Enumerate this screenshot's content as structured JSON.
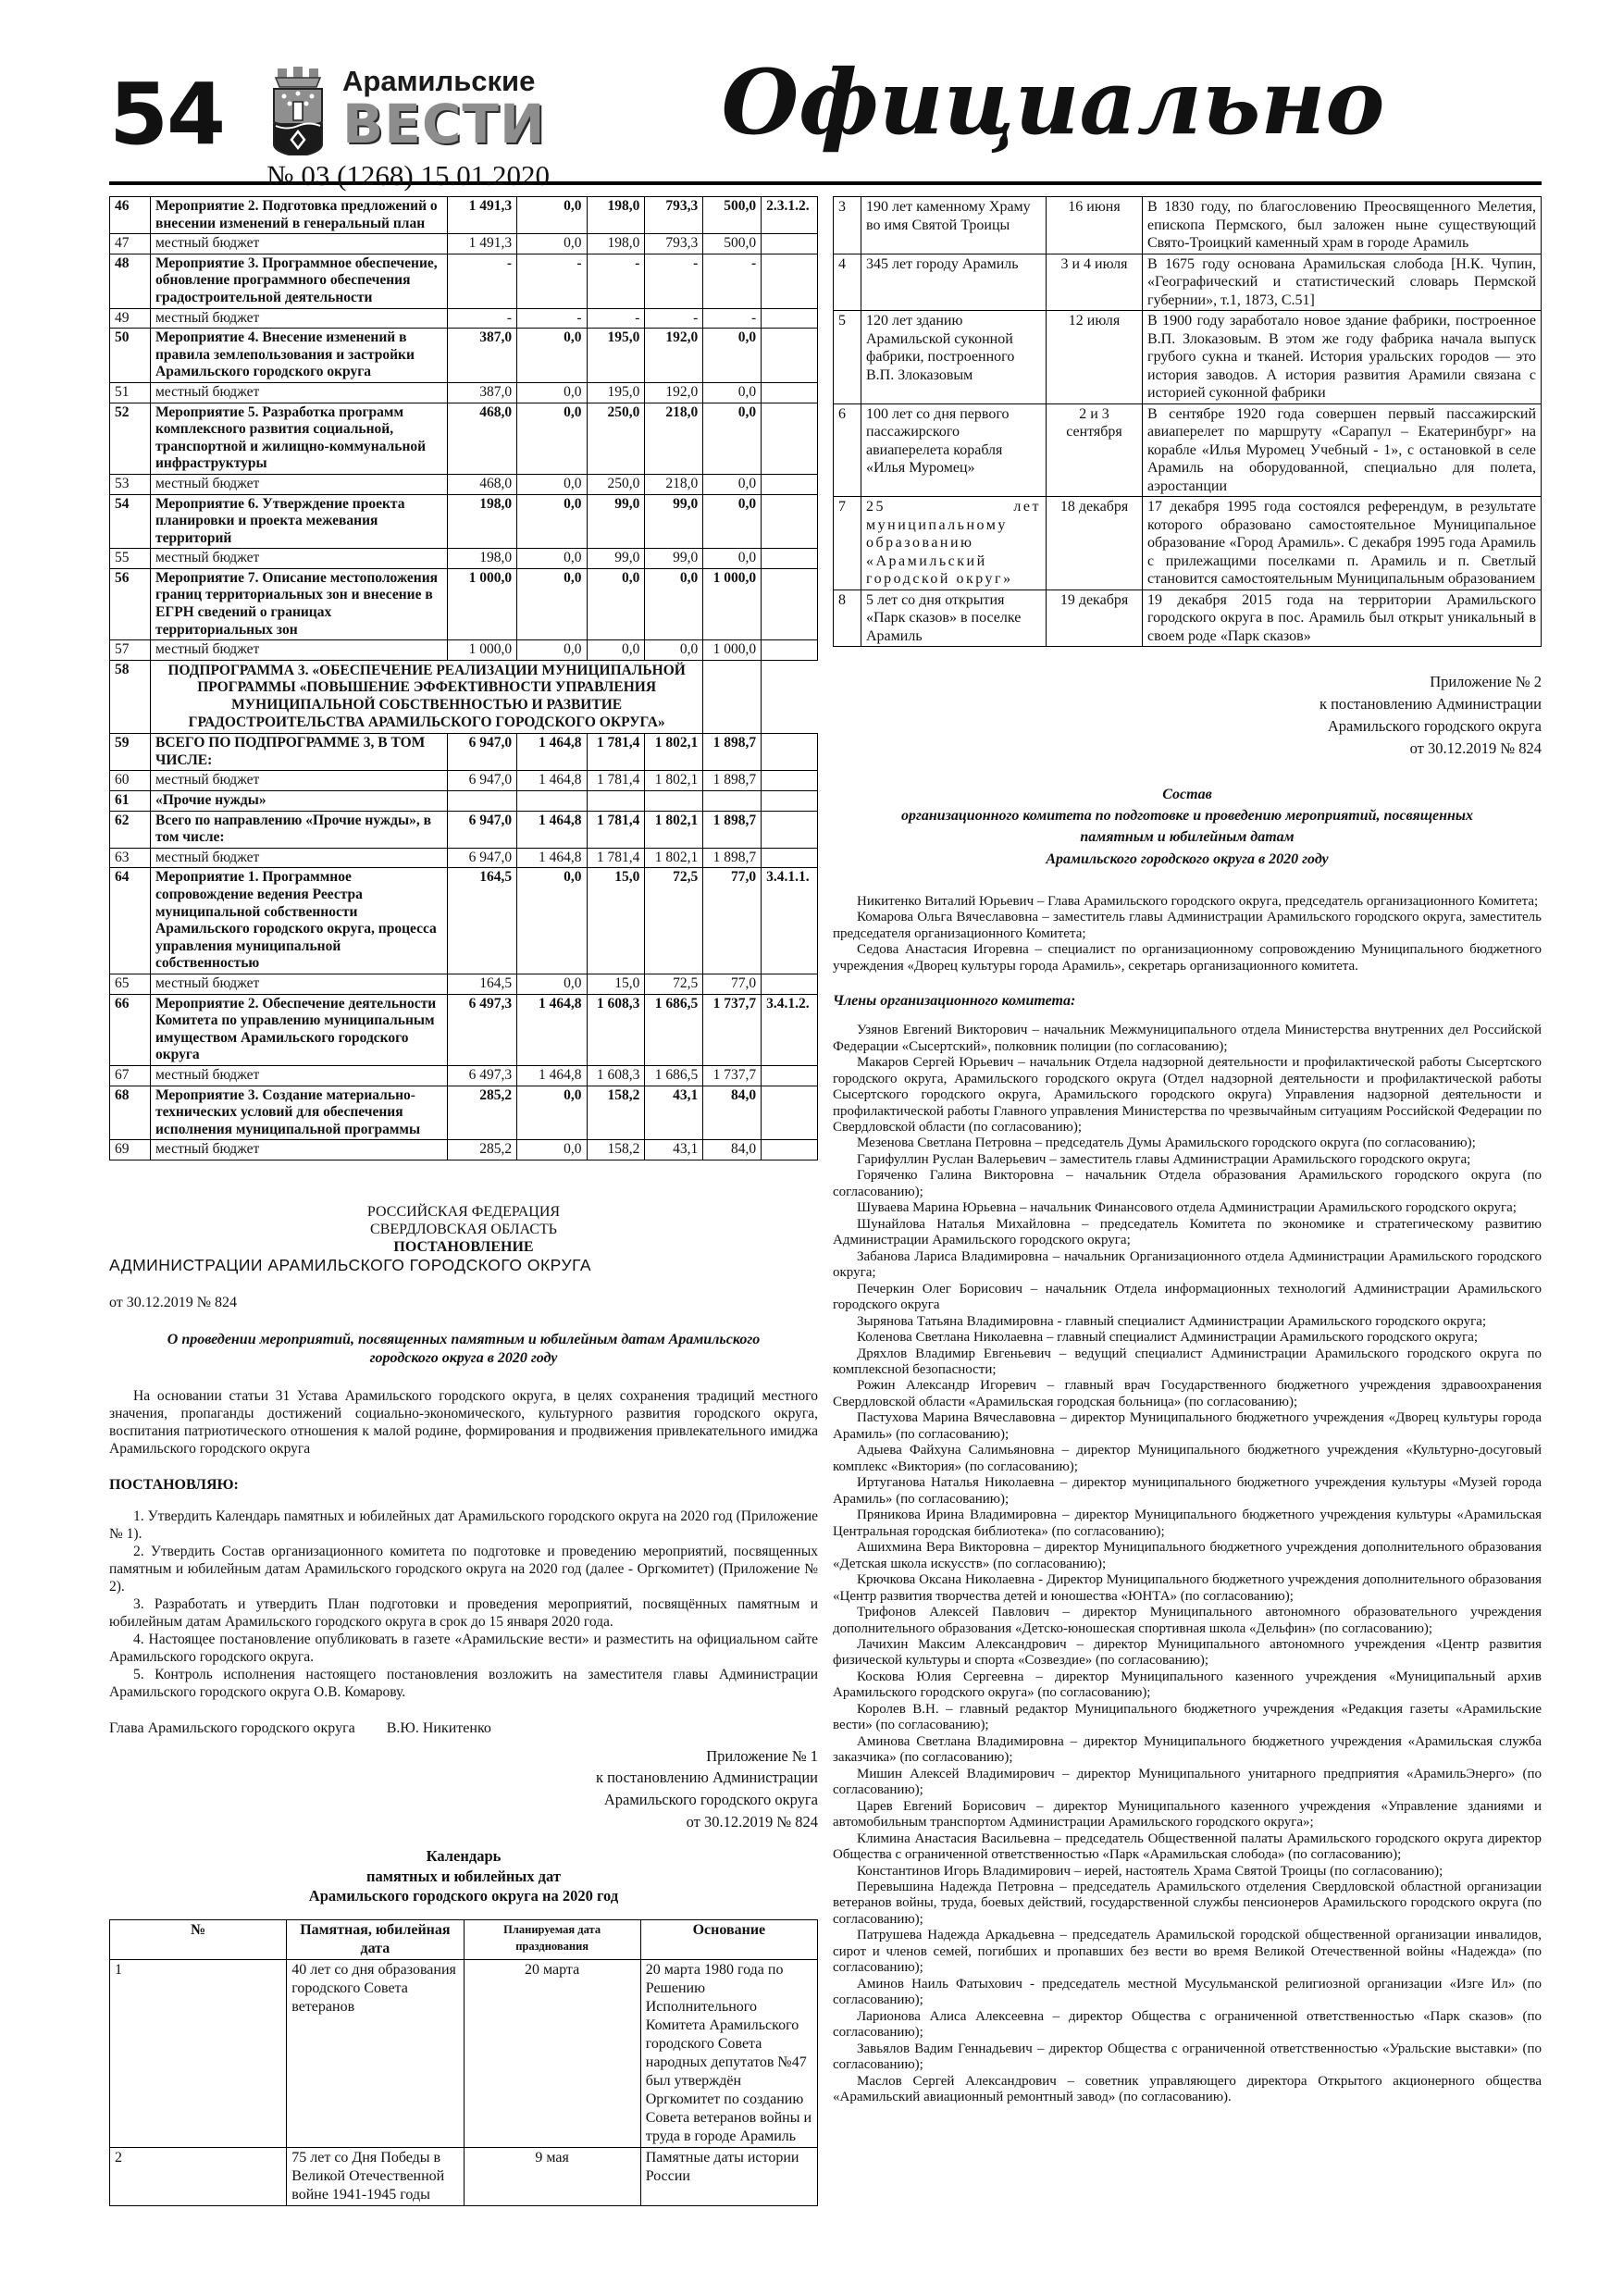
{
  "header": {
    "page_number": "54",
    "newspaper_name_top": "Арамильские",
    "newspaper_name_bottom": "ВЕСТИ",
    "issue": "№ 03 (1268) 15.01.2020",
    "section_title": "Официально",
    "crest_icon": "aramil-coat-of-arms"
  },
  "budget_table": {
    "rows": [
      {
        "num": "46",
        "name": "Мероприятие 2. Подготовка предложений о внесении изменений в генеральный план",
        "bold": true,
        "values": [
          "1 491,3",
          "0,0",
          "198,0",
          "793,3",
          "500,0"
        ],
        "code": "2.3.1.2."
      },
      {
        "num": "47",
        "name": "местный бюджет",
        "bold": false,
        "values": [
          "1 491,3",
          "0,0",
          "198,0",
          "793,3",
          "500,0"
        ],
        "code": ""
      },
      {
        "num": "48",
        "name": "Мероприятие 3. Программное обеспечение, обновление программного обеспечения градостроительной деятельности",
        "bold": true,
        "values": [
          "-",
          "-",
          "-",
          "-",
          "-"
        ],
        "code": ""
      },
      {
        "num": "49",
        "name": "местный бюджет",
        "bold": false,
        "values": [
          "-",
          "-",
          "-",
          "-",
          "-"
        ],
        "code": ""
      },
      {
        "num": "50",
        "name": "Мероприятие 4. Внесение изменений в правила землепользования и застройки Арамильского городского округа",
        "bold": true,
        "values": [
          "387,0",
          "0,0",
          "195,0",
          "192,0",
          "0,0"
        ],
        "code": ""
      },
      {
        "num": "51",
        "name": "местный бюджет",
        "bold": false,
        "values": [
          "387,0",
          "0,0",
          "195,0",
          "192,0",
          "0,0"
        ],
        "code": ""
      },
      {
        "num": "52",
        "name": "Мероприятие 5. Разработка программ комплексного развития социальной, транспортной и жилищно-коммунальной инфраструктуры",
        "bold": true,
        "values": [
          "468,0",
          "0,0",
          "250,0",
          "218,0",
          "0,0"
        ],
        "code": ""
      },
      {
        "num": "53",
        "name": "местный бюджет",
        "bold": false,
        "values": [
          "468,0",
          "0,0",
          "250,0",
          "218,0",
          "0,0"
        ],
        "code": ""
      },
      {
        "num": "54",
        "name": "Мероприятие 6. Утверждение проекта планировки и проекта межевания территорий",
        "bold": true,
        "values": [
          "198,0",
          "0,0",
          "99,0",
          "99,0",
          "0,0"
        ],
        "code": ""
      },
      {
        "num": "55",
        "name": "местный бюджет",
        "bold": false,
        "values": [
          "198,0",
          "0,0",
          "99,0",
          "99,0",
          "0,0"
        ],
        "code": ""
      },
      {
        "num": "56",
        "name": "Мероприятие 7. Описание местоположения границ территориальных зон и внесение в ЕГРН сведений о границах территориальных зон",
        "bold": true,
        "values": [
          "1 000,0",
          "0,0",
          "0,0",
          "0,0",
          "1 000,0"
        ],
        "code": ""
      },
      {
        "num": "57",
        "name": "местный бюджет",
        "bold": false,
        "values": [
          "1 000,0",
          "0,0",
          "0,0",
          "0,0",
          "1 000,0"
        ],
        "code": ""
      },
      {
        "num": "58",
        "name": "ПОДПРОГРАММА 3. «ОБЕСПЕЧЕНИЕ РЕАЛИЗАЦИИ МУНИЦИПАЛЬНОЙ ПРОГРАММЫ «ПОВЫШЕНИЕ ЭФФЕКТИВНОСТИ УПРАВЛЕНИЯ МУНИЦИПАЛЬНОЙ СОБСТВЕННОСТЬЮ И РАЗВИТИЕ ГРАДОСТРОИТЕЛЬСТВА АРАМИЛЬСКОГО ГОРОДСКОГО ОКРУГА»",
        "bold": true,
        "span": true,
        "values": [],
        "code": ""
      },
      {
        "num": "59",
        "name": "ВСЕГО ПО ПОДПРОГРАММЕ 3, В ТОМ ЧИСЛЕ:",
        "bold": true,
        "values": [
          "6 947,0",
          "1 464,8",
          "1 781,4",
          "1 802,1",
          "1 898,7"
        ],
        "code": ""
      },
      {
        "num": "60",
        "name": "местный бюджет",
        "bold": false,
        "values": [
          "6 947,0",
          "1 464,8",
          "1 781,4",
          "1 802,1",
          "1 898,7"
        ],
        "code": ""
      },
      {
        "num": "61",
        "name": "«Прочие нужды»",
        "bold": true,
        "values": [
          "",
          "",
          "",
          "",
          ""
        ],
        "code": ""
      },
      {
        "num": "62",
        "name": "Всего по направлению «Прочие нужды», в том числе:",
        "bold": true,
        "values": [
          "6 947,0",
          "1 464,8",
          "1 781,4",
          "1 802,1",
          "1 898,7"
        ],
        "code": ""
      },
      {
        "num": "63",
        "name": "местный бюджет",
        "bold": false,
        "values": [
          "6 947,0",
          "1 464,8",
          "1 781,4",
          "1 802,1",
          "1 898,7"
        ],
        "code": ""
      },
      {
        "num": "64",
        "name": "Мероприятие 1. Программное сопровождение ведения Реестра муниципальной собственности Арамильского городского округа, процесса управления муниципальной собственностью",
        "bold": true,
        "values": [
          "164,5",
          "0,0",
          "15,0",
          "72,5",
          "77,0"
        ],
        "code": "3.4.1.1."
      },
      {
        "num": "65",
        "name": "местный бюджет",
        "bold": false,
        "values": [
          "164,5",
          "0,0",
          "15,0",
          "72,5",
          "77,0"
        ],
        "code": ""
      },
      {
        "num": "66",
        "name": "Мероприятие 2. Обеспечение деятельности Комитета по управлению муниципальным имуществом Арамильского городского округа",
        "bold": true,
        "values": [
          "6 497,3",
          "1 464,8",
          "1 608,3",
          "1 686,5",
          "1 737,7"
        ],
        "code": "3.4.1.2."
      },
      {
        "num": "67",
        "name": "местный бюджет",
        "bold": false,
        "values": [
          "6 497,3",
          "1 464,8",
          "1 608,3",
          "1 686,5",
          "1 737,7"
        ],
        "code": ""
      },
      {
        "num": "68",
        "name": "Мероприятие 3. Создание материально-технических условий для обеспечения исполнения муниципальной программы",
        "bold": true,
        "values": [
          "285,2",
          "0,0",
          "158,2",
          "43,1",
          "84,0"
        ],
        "code": ""
      },
      {
        "num": "69",
        "name": "местный бюджет",
        "bold": false,
        "values": [
          "285,2",
          "0,0",
          "158,2",
          "43,1",
          "84,0"
        ],
        "code": ""
      }
    ]
  },
  "decree": {
    "country": "РОССИЙСКАЯ ФЕДЕРАЦИЯ",
    "region": "СВЕРДЛОВСКАЯ ОБЛАСТЬ",
    "doc_type": "ПОСТАНОВЛЕНИЕ",
    "authority": "АДМИНИСТРАЦИИ АРАМИЛЬСКОГО ГОРОДСКОГО ОКРУГА",
    "date_line": "от 30.12.2019 № 824",
    "title": "О проведении мероприятий, посвященных памятным и юбилейным датам Арамильского городского округа в 2020 году",
    "preamble": "На основании статьи 31 Устава Арамильского городского округа,  в целях сохранения традиций местного значения, пропаганды достижений социально-экономического, культурного развития городского округа, воспитания патриотического отношения к малой родине, формирования и продвижения привлекательного имиджа Арамильского городского округа",
    "resolve_word": "ПОСТАНОВЛЯЮ:",
    "items": [
      "1. Утвердить Календарь памятных и юбилейных дат Арамильского городского округа на 2020 год (Приложение № 1).",
      "2. Утвердить Состав организационного комитета по подготовке и проведению мероприятий, посвященных памятным и юбилейным датам Арамильского городского округа на 2020 год (далее - Оргкомитет) (Приложение № 2).",
      "3. Разработать и утвердить План подготовки и проведения мероприятий, посвящённых памятным и юбилейным датам Арамильского городского округа в срок до 15 января 2020 года.",
      "4. Настоящее постановление опубликовать в газете «Арамильские вести» и разместить на официальном сайте Арамильского городского округа.",
      "5. Контроль исполнения настоящего постановления возложить на заместителя главы Администрации Арамильского городского округа О.В. Комарову."
    ],
    "signature_left": "Глава Арамильского городского округа",
    "signature_right": "В.Ю. Никитенко"
  },
  "annex1": {
    "lines": [
      "Приложение № 1",
      "к постановлению Администрации",
      "Арамильского городского округа",
      "от 30.12.2019 № 824"
    ],
    "calendar_title": [
      "Календарь",
      "памятных и юбилейных дат",
      "Арамильского городского округа на 2020 год"
    ]
  },
  "calendar_table": {
    "headers": [
      "№",
      "Памятная, юбилейная дата",
      "Планируемая дата празднования",
      "Основание"
    ],
    "rows": [
      {
        "num": "1",
        "name": "40 лет со дня образования городского Совета ветеранов",
        "date": "20 марта",
        "basis": "20 марта 1980 года по Решению Исполнительного Комитета Арамильского городского Совета народных депутатов №47 был утверждён Оргкомитет по созданию Совета ветеранов войны и труда в городе Арамиль"
      },
      {
        "num": "2",
        "name": "75 лет со Дня Победы в Великой Отечественной войне 1941-1945 годы",
        "date": "9 мая",
        "basis": "Памятные даты истории России"
      }
    ]
  },
  "dates_table": {
    "rows": [
      {
        "num": "3",
        "name": "190 лет каменному Храму во имя Святой Троицы",
        "spaced": false,
        "date": "16 июня",
        "basis": "В 1830 году, по благословению Преосвященного Мелетия, епископа Пермского, был заложен ныне существующий Свято-Троицкий каменный храм в городе Арамиль"
      },
      {
        "num": "4",
        "name": "345 лет городу Арамиль",
        "spaced": false,
        "date": "3 и 4 июля",
        "basis": "В 1675 году основана Арамильская слобода  [Н.К. Чупин, «Географический и статистический словарь Пермской губернии», т.1, 1873, С.51]"
      },
      {
        "num": "5",
        "name": "120 лет зданию Арамильской суконной фабрики, построенного В.П. Злоказовым",
        "spaced": false,
        "date": "12 июля",
        "basis": "В 1900 году заработало новое здание фабрики, построенное В.П. Злоказовым. В этом же году фабрика начала выпуск грубого сукна и тканей.  История уральских городов — это история заводов. А история развития Арамили связана с историей суконной фабрики"
      },
      {
        "num": "6",
        "name": "100 лет со дня первого пассажирского авиаперелета корабля «Илья Муромец»",
        "spaced": false,
        "date": "2 и 3 сентября",
        "basis": "В сентябре 1920 года совершен первый пассажирский авиаперелет по маршруту «Сарапул – Екатеринбург» на корабле «Илья Муромец Учебный - 1», с остановкой в селе Арамиль на оборудованной, специально для полета, аэростанции"
      },
      {
        "num": "7",
        "name": "25 лет муниципальному образованию «Арамильский городской округ»",
        "spaced": true,
        "date": "18 декабря",
        "basis": "17 декабря 1995 года состоялся референдум, в результате которого образовано самостоятельное Муниципальное образование «Город Арамиль». С декабря 1995 года Арамиль с прилежащими поселками п. Арамиль и п. Светлый становится самостоятельным Муниципальным образованием"
      },
      {
        "num": "8",
        "name": "5 лет со дня открытия «Парк сказов» в поселке Арамиль",
        "spaced": false,
        "date": "19 декабря",
        "basis": "19 декабря 2015 года на территории Арамильского городского округа в пос. Арамиль был открыт уникальный в своем роде «Парк сказов»"
      }
    ]
  },
  "annex2": {
    "lines": [
      "Приложение № 2",
      "к постановлению Администрации",
      "Арамильского городского округа",
      "от 30.12.2019 № 824"
    ],
    "composition_title": [
      "Состав",
      "организационного комитета по подготовке и проведению мероприятий, посвященных",
      "памятным и юбилейным датам",
      "Арамильского городского округа в 2020 году"
    ],
    "intro": [
      "Никитенко Виталий Юрьевич – Глава Арамильского городского округа, председатель организационного Комитета;",
      "Комарова Ольга Вячеславовна – заместитель главы Администрации Арамильского городского округа, заместитель председателя организационного Комитета;",
      "Седова Анастасия Игоревна – специалист по организационному сопровождению Муниципального бюджетного учреждения «Дворец культуры города Арамиль», секретарь организационного комитета."
    ],
    "members_heading": "Члены организационного комитета:",
    "members": [
      "Узянов Евгений Викторович – начальник Межмуниципального отдела Министерства внутренних дел Российской Федерации «Сысертский», полковник полиции (по согласованию);",
      "Макаров Сергей Юрьевич – начальник Отдела надзорной деятельности и профилактической работы Сысертского городского округа, Арамильского городского округа (Отдел надзорной деятельности и профилактической работы Сысертского городского округа, Арамильского городского округа) Управления надзорной деятельности и профилактической работы Главного управления Министерства по чрезвычайным ситуациям Российской Федерации по Свердловской области (по согласованию);",
      "Мезенова Светлана Петровна – председатель Думы Арамильского городского округа (по согласованию);",
      "Гарифуллин Руслан Валерьевич – заместитель главы Администрации Арамильского городского округа;",
      "Горяченко Галина Викторовна – начальник Отдела образования Арамильского городского округа (по согласованию);",
      "Шуваева Марина Юрьевна – начальник Финансового отдела Администрации Арамильского городского округа;",
      "Шунайлова Наталья Михайловна – председатель Комитета по экономике и стратегическому развитию Администрации Арамильского городского округа;",
      "Забанова Лариса Владимировна – начальник Организационного отдела Администрации Арамильского городского округа;",
      "Печеркин Олег Борисович – начальник Отдела информационных технологий Администрации Арамильского городского округа",
      "Зырянова Татьяна Владимировна - главный специалист Администрации Арамильского городского округа;",
      "Коленова Светлана Николаевна – главный специалист Администрации Арамильского городского округа;",
      "Дряхлов Владимир Евгеньевич – ведущий специалист Администрации Арамильского городского округа по комплексной безопасности;",
      "Рожин Александр Игоревич – главный врач Государственного бюджетного учреждения здравоохранения Свердловской области «Арамильская городская больница» (по согласованию);",
      "Пастухова Марина Вячеславовна – директор Муниципального бюджетного учреждения «Дворец культуры города Арамиль» (по согласованию);",
      "Адыева Файхуна Салимьяновна – директор Муниципального бюджетного учреждения «Культурно-досуговый комплекс «Виктория» (по согласованию);",
      "Иртуганова Наталья Николаевна – директор муниципального бюджетного учреждения культуры «Музей города Арамиль» (по согласованию);",
      "Пряникова Ирина Владимировна – директор Муниципального бюджетного учреждения культуры «Арамильская Центральная городская библиотека» (по согласованию);",
      "Ашихмина Вера Викторовна – директор Муниципального бюджетного учреждения дополнительного образования «Детская школа искусств» (по согласованию);",
      "Крючкова Оксана Николаевна - Директор Муниципального бюджетного учреждения дополнительного образования «Центр развития творчества детей и юношества «ЮНТА» (по согласованию);",
      "Трифонов Алексей Павлович – директор Муниципального автономного образовательного учреждения дополнительного образования «Детско-юношеская спортивная школа «Дельфин» (по согласованию);",
      "Лачихин Максим Александрович – директор Муниципального автономного учреждения «Центр развития физической культуры и спорта «Созвездие» (по согласованию);",
      "Коскова Юлия Сергеевна – директор Муниципального казенного учреждения «Муниципальный архив Арамильского городского округа» (по согласованию);",
      "Королев В.Н. – главный редактор Муниципального бюджетного учреждения «Редакция газеты «Арамильские вести» (по согласованию);",
      "Аминова Светлана Владимировна – директор Муниципального бюджетного учреждения «Арамильская служба заказчика» (по согласованию);",
      "Мишин Алексей Владимирович – директор Муниципального унитарного предприятия «АрамильЭнерго» (по согласованию);",
      "Царев Евгений Борисович – директор Муниципального казенного учреждения «Управление зданиями и автомобильным транспортом Администрации Арамильского городского округа»;",
      "Климина Анастасия Васильевна – председатель Общественной палаты Арамильского городского округа директор Общества с ограниченной ответственностью «Парк «Арамильская слобода» (по согласованию);",
      "Константинов Игорь Владимирович – иерей, настоятель Храма Святой Троицы (по согласованию);",
      "Перевышина Надежда Петровна – председатель Арамильского отделения Свердловской областной организации ветеранов войны, труда, боевых действий, государственной службы пенсионеров Арамильского городского округа (по согласованию);",
      "Патрушева Надежда Аркадьевна – председатель Арамильской городской общественной организации инвалидов, сирот и членов семей, погибших и пропавших без вести во время Великой Отечественной войны «Надежда» (по согласованию);",
      "Аминов Наиль Фатыхович - председатель местной Мусульманской религиозной организации «Изге Ил» (по согласованию);",
      "Ларионова Алиса Алексеевна – директор Общества с ограниченной ответственностью «Парк сказов» (по согласованию);",
      "Завьялов Вадим Геннадьевич – директор Общества с ограниченной ответственностью «Уральские выставки» (по согласованию);",
      "Маслов Сергей Александрович – советник управляющего директора Открытого акционерного общества «Арамильский авиационный ремонтный завод» (по согласованию)."
    ]
  }
}
